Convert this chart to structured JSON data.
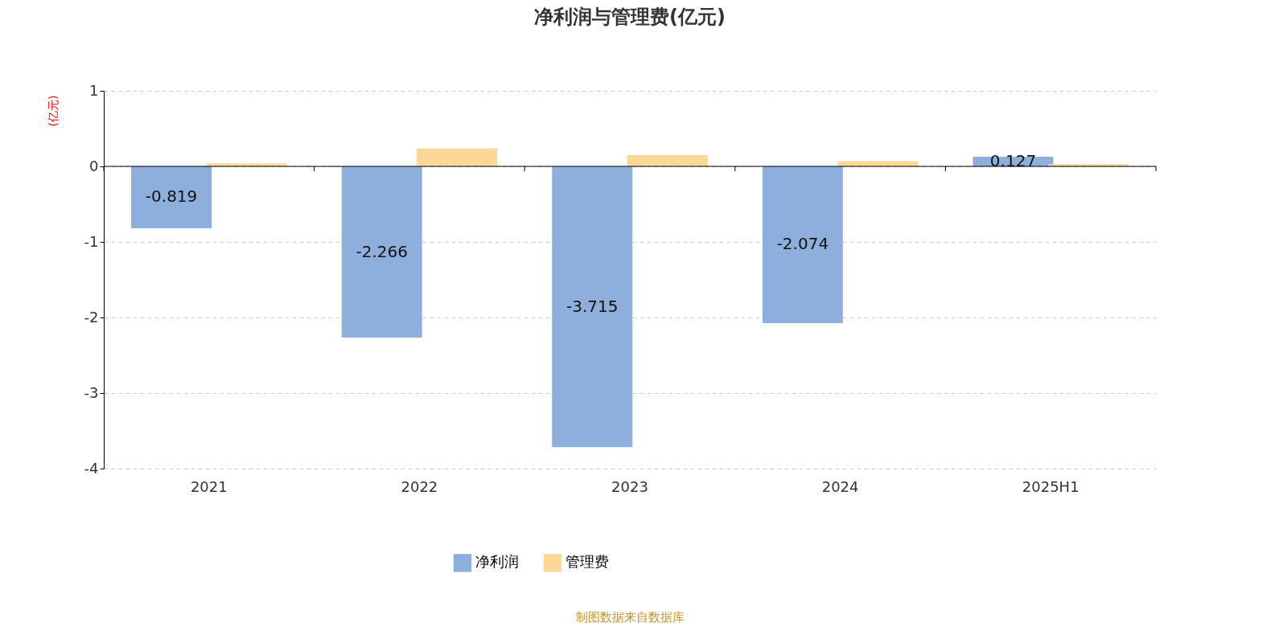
{
  "chart_data": {
    "type": "bar",
    "title": "净利润与管理费(亿元)",
    "ylabel": "(亿元)",
    "categories": [
      "2021",
      "2022",
      "2023",
      "2024",
      "2025H1"
    ],
    "series": [
      {
        "name": "净利润",
        "color": "#8eaedb",
        "values": [
          -0.819,
          -2.266,
          -3.715,
          -2.074,
          0.127
        ],
        "value_labels": [
          "-0.819",
          "-2.266",
          "-3.715",
          "-2.074",
          "0.127"
        ]
      },
      {
        "name": "管理费",
        "color": "#fdd795",
        "values": [
          0.04,
          0.24,
          0.15,
          0.07,
          0.03
        ]
      }
    ],
    "ylim": [
      -4,
      1
    ],
    "yticks": [
      -4,
      -3,
      -2,
      -1,
      0,
      1
    ],
    "grid": "y",
    "legend": "bottom",
    "annotations": [
      "制图数据来自数据库"
    ]
  }
}
